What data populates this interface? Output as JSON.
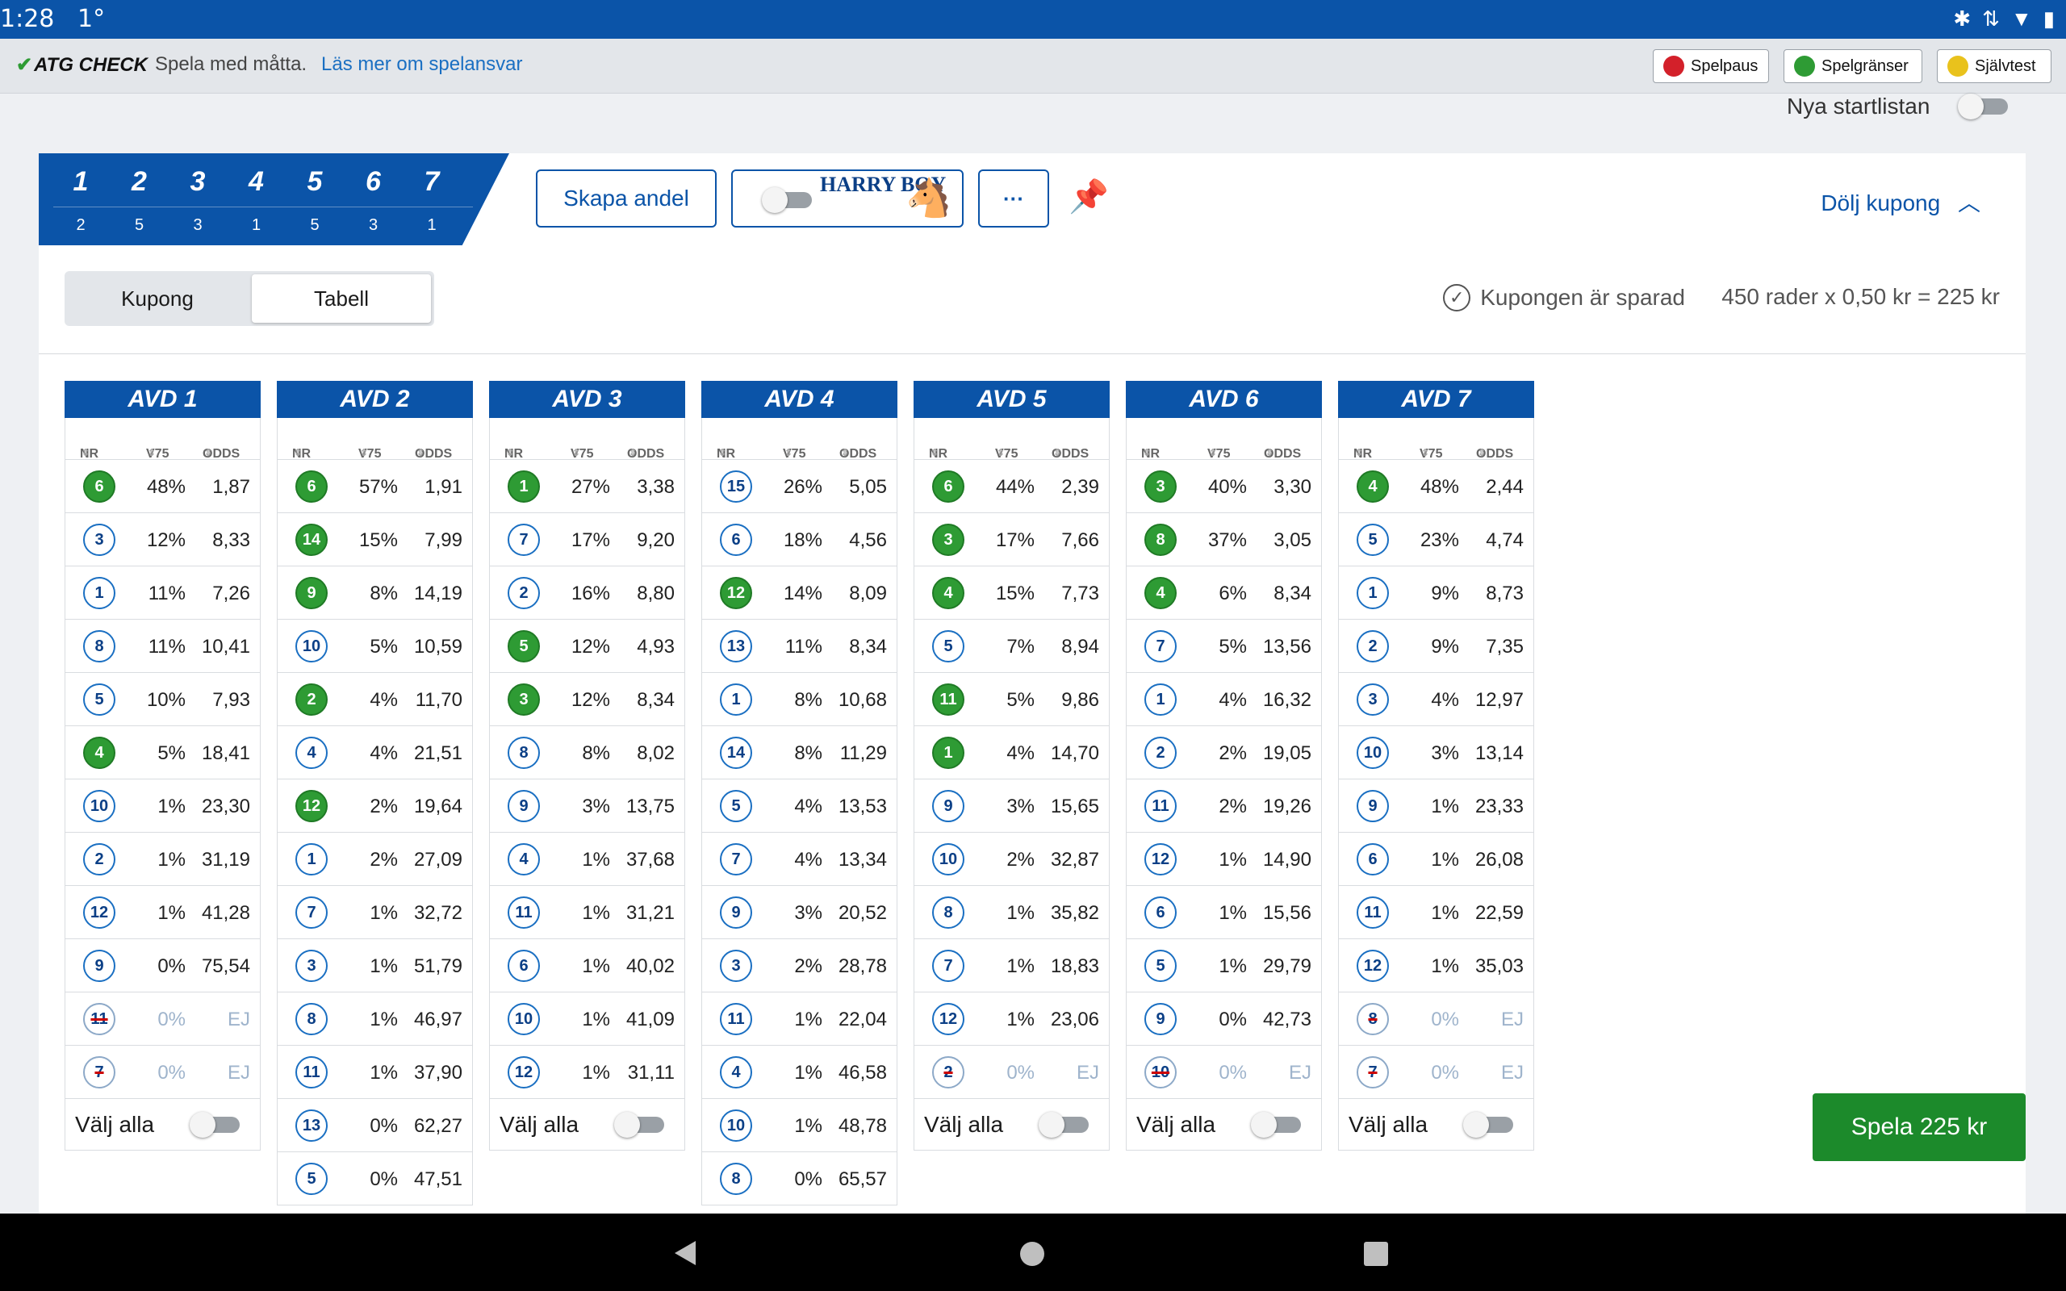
{
  "status": {
    "time": "1:28",
    "temp": "1°"
  },
  "atg": {
    "logo": "ATG CHECK",
    "tagline": "Spela med måtta.",
    "readmore": "Läs mer om spelansvar",
    "buttons": [
      "Spelpaus",
      "Spelgränser",
      "Självtest"
    ]
  },
  "nya_startlistan": "Nya startlistan",
  "races": [
    {
      "nr": "1",
      "count": "2"
    },
    {
      "nr": "2",
      "count": "5"
    },
    {
      "nr": "3",
      "count": "3"
    },
    {
      "nr": "4",
      "count": "1"
    },
    {
      "nr": "5",
      "count": "5"
    },
    {
      "nr": "6",
      "count": "3"
    },
    {
      "nr": "7",
      "count": "1"
    }
  ],
  "header": {
    "skapa_andel": "Skapa andel",
    "harry_boy": "HARRY BOY",
    "more": "···",
    "dolj_kupong": "Dölj kupong"
  },
  "tabs": {
    "kupong": "Kupong",
    "tabell": "Tabell"
  },
  "saved_text": "Kupongen är sparad",
  "rows_text": "450 rader x 0,50 kr = 225 kr",
  "columns_header": {
    "nr": "NR",
    "v75": "V75",
    "odds": "ODDS"
  },
  "valj_alla": "Välj alla",
  "spela": "Spela 225 kr",
  "avds": [
    {
      "title": "AVD 1",
      "rows": [
        {
          "nr": "6",
          "pct": "48%",
          "odds": "1,87",
          "state": "selected"
        },
        {
          "nr": "3",
          "pct": "12%",
          "odds": "8,33",
          "state": "normal"
        },
        {
          "nr": "1",
          "pct": "11%",
          "odds": "7,26",
          "state": "normal"
        },
        {
          "nr": "8",
          "pct": "11%",
          "odds": "10,41",
          "state": "normal"
        },
        {
          "nr": "5",
          "pct": "10%",
          "odds": "7,93",
          "state": "normal"
        },
        {
          "nr": "4",
          "pct": "5%",
          "odds": "18,41",
          "state": "selected"
        },
        {
          "nr": "10",
          "pct": "1%",
          "odds": "23,30",
          "state": "normal"
        },
        {
          "nr": "2",
          "pct": "1%",
          "odds": "31,19",
          "state": "normal"
        },
        {
          "nr": "12",
          "pct": "1%",
          "odds": "41,28",
          "state": "normal"
        },
        {
          "nr": "9",
          "pct": "0%",
          "odds": "75,54",
          "state": "normal"
        },
        {
          "nr": "11",
          "pct": "0%",
          "odds": "EJ",
          "state": "scratched"
        },
        {
          "nr": "7",
          "pct": "0%",
          "odds": "EJ",
          "state": "scratched"
        }
      ],
      "show_valj": true
    },
    {
      "title": "AVD 2",
      "rows": [
        {
          "nr": "6",
          "pct": "57%",
          "odds": "1,91",
          "state": "selected"
        },
        {
          "nr": "14",
          "pct": "15%",
          "odds": "7,99",
          "state": "selected"
        },
        {
          "nr": "9",
          "pct": "8%",
          "odds": "14,19",
          "state": "selected"
        },
        {
          "nr": "10",
          "pct": "5%",
          "odds": "10,59",
          "state": "normal"
        },
        {
          "nr": "2",
          "pct": "4%",
          "odds": "11,70",
          "state": "selected"
        },
        {
          "nr": "4",
          "pct": "4%",
          "odds": "21,51",
          "state": "normal"
        },
        {
          "nr": "12",
          "pct": "2%",
          "odds": "19,64",
          "state": "selected"
        },
        {
          "nr": "1",
          "pct": "2%",
          "odds": "27,09",
          "state": "normal"
        },
        {
          "nr": "7",
          "pct": "1%",
          "odds": "32,72",
          "state": "normal"
        },
        {
          "nr": "3",
          "pct": "1%",
          "odds": "51,79",
          "state": "normal"
        },
        {
          "nr": "8",
          "pct": "1%",
          "odds": "46,97",
          "state": "normal"
        },
        {
          "nr": "11",
          "pct": "1%",
          "odds": "37,90",
          "state": "normal"
        },
        {
          "nr": "13",
          "pct": "0%",
          "odds": "62,27",
          "state": "normal"
        },
        {
          "nr": "5",
          "pct": "0%",
          "odds": "47,51",
          "state": "normal"
        }
      ],
      "show_valj": false
    },
    {
      "title": "AVD 3",
      "rows": [
        {
          "nr": "1",
          "pct": "27%",
          "odds": "3,38",
          "state": "selected"
        },
        {
          "nr": "7",
          "pct": "17%",
          "odds": "9,20",
          "state": "normal"
        },
        {
          "nr": "2",
          "pct": "16%",
          "odds": "8,80",
          "state": "normal"
        },
        {
          "nr": "5",
          "pct": "12%",
          "odds": "4,93",
          "state": "selected"
        },
        {
          "nr": "3",
          "pct": "12%",
          "odds": "8,34",
          "state": "selected"
        },
        {
          "nr": "8",
          "pct": "8%",
          "odds": "8,02",
          "state": "normal"
        },
        {
          "nr": "9",
          "pct": "3%",
          "odds": "13,75",
          "state": "normal"
        },
        {
          "nr": "4",
          "pct": "1%",
          "odds": "37,68",
          "state": "normal"
        },
        {
          "nr": "11",
          "pct": "1%",
          "odds": "31,21",
          "state": "normal"
        },
        {
          "nr": "6",
          "pct": "1%",
          "odds": "40,02",
          "state": "normal"
        },
        {
          "nr": "10",
          "pct": "1%",
          "odds": "41,09",
          "state": "normal"
        },
        {
          "nr": "12",
          "pct": "1%",
          "odds": "31,11",
          "state": "normal"
        }
      ],
      "show_valj": true
    },
    {
      "title": "AVD 4",
      "rows": [
        {
          "nr": "15",
          "pct": "26%",
          "odds": "5,05",
          "state": "normal"
        },
        {
          "nr": "6",
          "pct": "18%",
          "odds": "4,56",
          "state": "normal"
        },
        {
          "nr": "12",
          "pct": "14%",
          "odds": "8,09",
          "state": "selected"
        },
        {
          "nr": "13",
          "pct": "11%",
          "odds": "8,34",
          "state": "normal"
        },
        {
          "nr": "1",
          "pct": "8%",
          "odds": "10,68",
          "state": "normal"
        },
        {
          "nr": "14",
          "pct": "8%",
          "odds": "11,29",
          "state": "normal"
        },
        {
          "nr": "5",
          "pct": "4%",
          "odds": "13,53",
          "state": "normal"
        },
        {
          "nr": "7",
          "pct": "4%",
          "odds": "13,34",
          "state": "normal"
        },
        {
          "nr": "9",
          "pct": "3%",
          "odds": "20,52",
          "state": "normal"
        },
        {
          "nr": "3",
          "pct": "2%",
          "odds": "28,78",
          "state": "normal"
        },
        {
          "nr": "11",
          "pct": "1%",
          "odds": "22,04",
          "state": "normal"
        },
        {
          "nr": "4",
          "pct": "1%",
          "odds": "46,58",
          "state": "normal"
        },
        {
          "nr": "10",
          "pct": "1%",
          "odds": "48,78",
          "state": "normal"
        },
        {
          "nr": "8",
          "pct": "0%",
          "odds": "65,57",
          "state": "normal"
        }
      ],
      "show_valj": false
    },
    {
      "title": "AVD 5",
      "rows": [
        {
          "nr": "6",
          "pct": "44%",
          "odds": "2,39",
          "state": "selected"
        },
        {
          "nr": "3",
          "pct": "17%",
          "odds": "7,66",
          "state": "selected"
        },
        {
          "nr": "4",
          "pct": "15%",
          "odds": "7,73",
          "state": "selected"
        },
        {
          "nr": "5",
          "pct": "7%",
          "odds": "8,94",
          "state": "normal"
        },
        {
          "nr": "11",
          "pct": "5%",
          "odds": "9,86",
          "state": "selected"
        },
        {
          "nr": "1",
          "pct": "4%",
          "odds": "14,70",
          "state": "selected"
        },
        {
          "nr": "9",
          "pct": "3%",
          "odds": "15,65",
          "state": "normal"
        },
        {
          "nr": "10",
          "pct": "2%",
          "odds": "32,87",
          "state": "normal"
        },
        {
          "nr": "8",
          "pct": "1%",
          "odds": "35,82",
          "state": "normal"
        },
        {
          "nr": "7",
          "pct": "1%",
          "odds": "18,83",
          "state": "normal"
        },
        {
          "nr": "12",
          "pct": "1%",
          "odds": "23,06",
          "state": "normal"
        },
        {
          "nr": "2",
          "pct": "0%",
          "odds": "EJ",
          "state": "scratched"
        }
      ],
      "show_valj": true
    },
    {
      "title": "AVD 6",
      "rows": [
        {
          "nr": "3",
          "pct": "40%",
          "odds": "3,30",
          "state": "selected"
        },
        {
          "nr": "8",
          "pct": "37%",
          "odds": "3,05",
          "state": "selected"
        },
        {
          "nr": "4",
          "pct": "6%",
          "odds": "8,34",
          "state": "selected"
        },
        {
          "nr": "7",
          "pct": "5%",
          "odds": "13,56",
          "state": "normal"
        },
        {
          "nr": "1",
          "pct": "4%",
          "odds": "16,32",
          "state": "normal"
        },
        {
          "nr": "2",
          "pct": "2%",
          "odds": "19,05",
          "state": "normal"
        },
        {
          "nr": "11",
          "pct": "2%",
          "odds": "19,26",
          "state": "normal"
        },
        {
          "nr": "12",
          "pct": "1%",
          "odds": "14,90",
          "state": "normal"
        },
        {
          "nr": "6",
          "pct": "1%",
          "odds": "15,56",
          "state": "normal"
        },
        {
          "nr": "5",
          "pct": "1%",
          "odds": "29,79",
          "state": "normal"
        },
        {
          "nr": "9",
          "pct": "0%",
          "odds": "42,73",
          "state": "normal"
        },
        {
          "nr": "10",
          "pct": "0%",
          "odds": "EJ",
          "state": "scratched"
        }
      ],
      "show_valj": true
    },
    {
      "title": "AVD 7",
      "rows": [
        {
          "nr": "4",
          "pct": "48%",
          "odds": "2,44",
          "state": "selected"
        },
        {
          "nr": "5",
          "pct": "23%",
          "odds": "4,74",
          "state": "normal"
        },
        {
          "nr": "1",
          "pct": "9%",
          "odds": "8,73",
          "state": "normal"
        },
        {
          "nr": "2",
          "pct": "9%",
          "odds": "7,35",
          "state": "normal"
        },
        {
          "nr": "3",
          "pct": "4%",
          "odds": "12,97",
          "state": "normal"
        },
        {
          "nr": "10",
          "pct": "3%",
          "odds": "13,14",
          "state": "normal"
        },
        {
          "nr": "9",
          "pct": "1%",
          "odds": "23,33",
          "state": "normal"
        },
        {
          "nr": "6",
          "pct": "1%",
          "odds": "26,08",
          "state": "normal"
        },
        {
          "nr": "11",
          "pct": "1%",
          "odds": "22,59",
          "state": "normal"
        },
        {
          "nr": "12",
          "pct": "1%",
          "odds": "35,03",
          "state": "normal"
        },
        {
          "nr": "8",
          "pct": "0%",
          "odds": "EJ",
          "state": "scratched"
        },
        {
          "nr": "7",
          "pct": "0%",
          "odds": "EJ",
          "state": "scratched"
        }
      ],
      "show_valj": true
    }
  ]
}
